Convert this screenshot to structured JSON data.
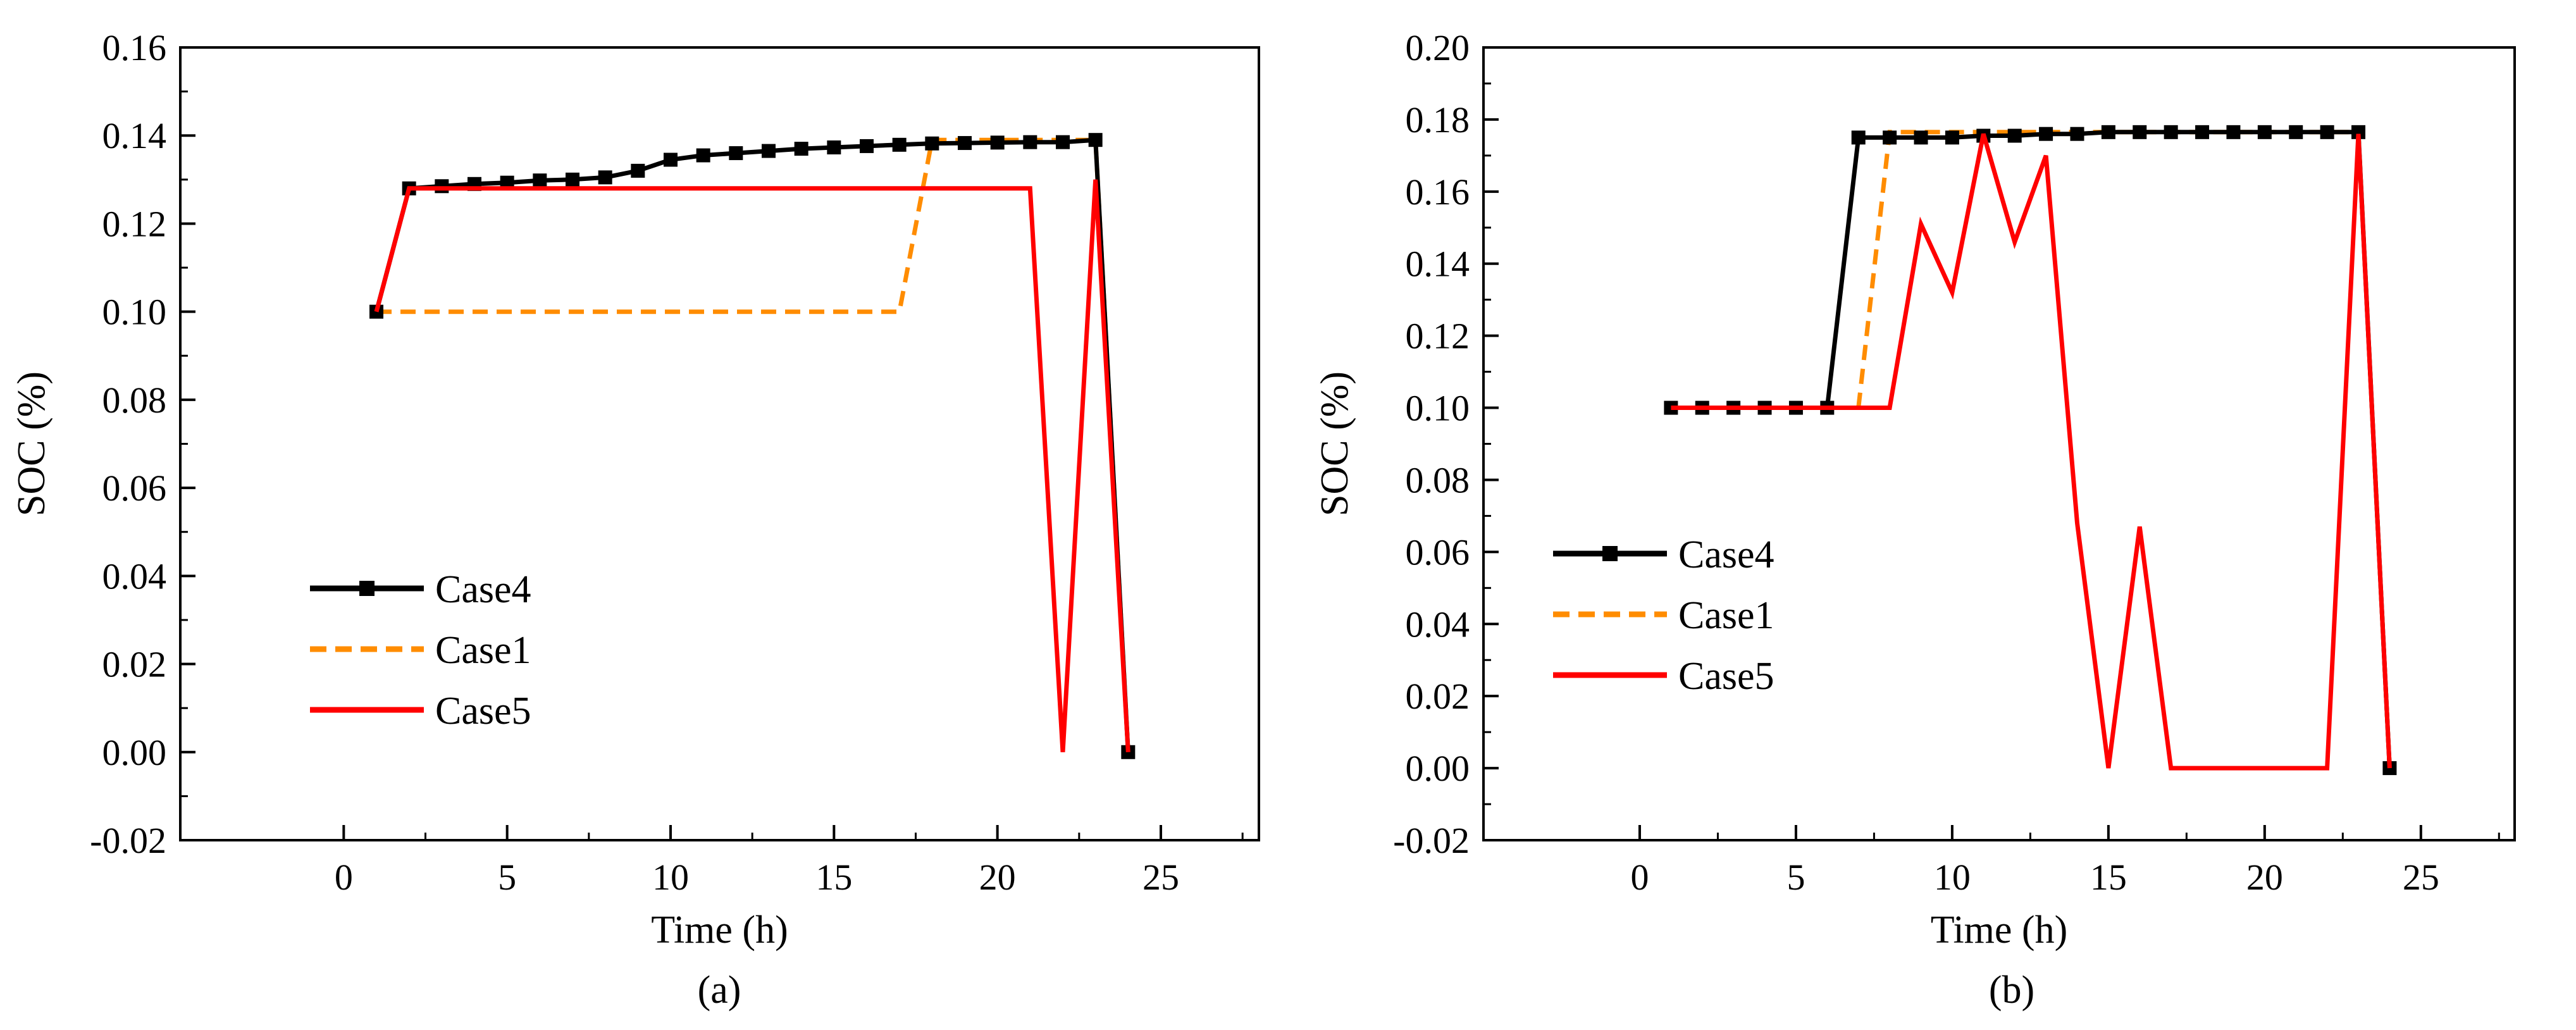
{
  "colors": {
    "case4": "#000000",
    "case1": "#ff8c00",
    "case5": "#ff0000"
  },
  "chart_data": [
    {
      "type": "line",
      "caption": "(a)",
      "xlabel": "Time (h)",
      "ylabel": "SOC (%)",
      "xlim": [
        -5,
        28
      ],
      "ylim": [
        -0.02,
        0.16
      ],
      "xticks": [
        "0",
        "5",
        "10",
        "15",
        "20",
        "25"
      ],
      "yticks": [
        "-0.02",
        "0.00",
        "0.02",
        "0.04",
        "0.06",
        "0.08",
        "0.10",
        "0.12",
        "0.14",
        "0.16"
      ],
      "legend": [
        "Case4",
        "Case1",
        "Case5"
      ],
      "series": [
        {
          "name": "Case4",
          "style": "solid-square",
          "x": [
            1,
            2,
            3,
            4,
            5,
            6,
            7,
            8,
            9,
            10,
            11,
            12,
            13,
            14,
            15,
            16,
            17,
            18,
            19,
            20,
            21,
            22,
            23,
            24
          ],
          "y": [
            0.1,
            0.128,
            0.1285,
            0.129,
            0.1293,
            0.1298,
            0.13,
            0.1305,
            0.132,
            0.1345,
            0.1355,
            0.136,
            0.1365,
            0.137,
            0.1373,
            0.1376,
            0.1379,
            0.1382,
            0.1383,
            0.1384,
            0.1385,
            0.1385,
            0.139,
            0.0
          ]
        },
        {
          "name": "Case1",
          "style": "dashed",
          "x": [
            1,
            17,
            18,
            23,
            24
          ],
          "y": [
            0.1,
            0.1,
            0.139,
            0.139,
            0.0
          ]
        },
        {
          "name": "Case5",
          "style": "solid",
          "x": [
            1,
            2,
            21,
            22,
            23,
            24
          ],
          "y": [
            0.1,
            0.128,
            0.128,
            0.0,
            0.13,
            0.0
          ]
        }
      ]
    },
    {
      "type": "line",
      "caption": "(b)",
      "xlabel": "Time (h)",
      "ylabel": "SOC (%)",
      "xlim": [
        -5,
        28
      ],
      "ylim": [
        -0.02,
        0.2
      ],
      "xticks": [
        "0",
        "5",
        "10",
        "15",
        "20",
        "25"
      ],
      "yticks": [
        "-0.02",
        "0.00",
        "0.02",
        "0.04",
        "0.06",
        "0.08",
        "0.10",
        "0.12",
        "0.14",
        "0.16",
        "0.18",
        "0.20"
      ],
      "legend": [
        "Case4",
        "Case1",
        "Case5"
      ],
      "series": [
        {
          "name": "Case4",
          "style": "solid-square",
          "x": [
            1,
            2,
            3,
            4,
            5,
            6,
            7,
            8,
            9,
            10,
            11,
            12,
            13,
            14,
            15,
            16,
            17,
            18,
            19,
            20,
            21,
            22,
            23,
            24
          ],
          "y": [
            0.1,
            0.1,
            0.1,
            0.1,
            0.1,
            0.1,
            0.175,
            0.175,
            0.175,
            0.175,
            0.1755,
            0.1755,
            0.176,
            0.176,
            0.1765,
            0.1765,
            0.1765,
            0.1765,
            0.1765,
            0.1765,
            0.1765,
            0.1765,
            0.1765,
            0.0
          ]
        },
        {
          "name": "Case1",
          "style": "dashed",
          "x": [
            7,
            8,
            23,
            24
          ],
          "y": [
            0.1,
            0.1765,
            0.1765,
            0.0
          ]
        },
        {
          "name": "Case5",
          "style": "solid",
          "x": [
            1,
            2,
            3,
            4,
            5,
            6,
            7,
            8,
            9,
            10,
            11,
            12,
            13,
            14,
            15,
            16,
            17,
            18,
            19,
            20,
            21,
            22,
            23,
            24
          ],
          "y": [
            0.1,
            0.1,
            0.1,
            0.1,
            0.1,
            0.1,
            0.1,
            0.1,
            0.151,
            0.132,
            0.176,
            0.146,
            0.17,
            0.068,
            0.0,
            0.067,
            0.0,
            0.0,
            0.0,
            0.0,
            0.0,
            0.0,
            0.176,
            0.0
          ]
        }
      ]
    }
  ]
}
